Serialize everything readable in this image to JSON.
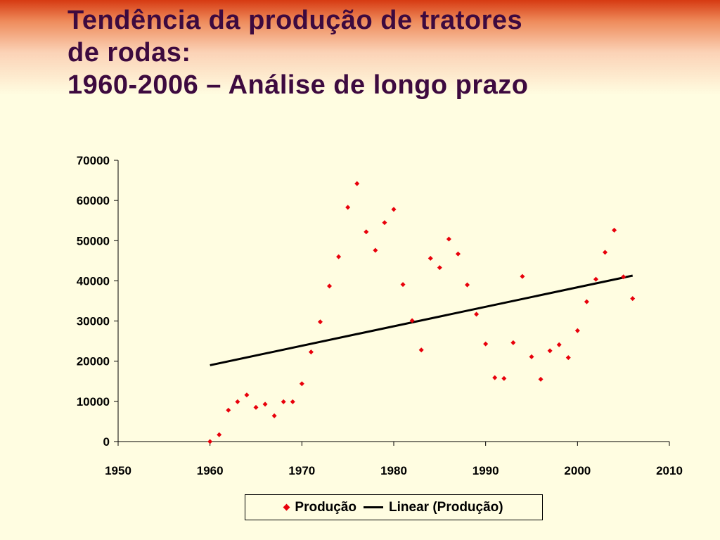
{
  "slide": {
    "title_lines": [
      "Tendência da produção de tratores",
      "de rodas:",
      "1960-2006 – Análise de longo prazo"
    ]
  },
  "colors": {
    "background": "#fffde1",
    "title": "#3d0a3f",
    "marker": "#e8000b",
    "trendline": "#000000"
  },
  "chart_data": {
    "type": "scatter",
    "title": "",
    "xlabel": "",
    "ylabel": "",
    "xlim": [
      1950,
      2010
    ],
    "ylim": [
      0,
      70000
    ],
    "x_ticks": [
      1950,
      1960,
      1970,
      1980,
      1990,
      2000,
      2010
    ],
    "y_ticks": [
      0,
      10000,
      20000,
      30000,
      40000,
      50000,
      60000,
      70000
    ],
    "grid": false,
    "legend_position": "bottom",
    "series": [
      {
        "name": "Produção",
        "marker": "diamond",
        "x": [
          1960,
          1961,
          1962,
          1963,
          1964,
          1965,
          1966,
          1967,
          1968,
          1969,
          1970,
          1971,
          1972,
          1973,
          1974,
          1975,
          1976,
          1977,
          1978,
          1979,
          1980,
          1981,
          1982,
          1983,
          1984,
          1985,
          1986,
          1987,
          1988,
          1989,
          1990,
          1991,
          1992,
          1993,
          1994,
          1995,
          1996,
          1997,
          1998,
          1999,
          2000,
          2001,
          2002,
          2003,
          2004,
          2005,
          2006
        ],
        "y": [
          0,
          1700,
          7800,
          9900,
          11600,
          8500,
          9300,
          6400,
          9900,
          9900,
          14400,
          22300,
          29800,
          38700,
          46000,
          58300,
          64200,
          52200,
          47600,
          54500,
          57800,
          39100,
          30100,
          22800,
          45600,
          43300,
          50400,
          46700,
          39000,
          31700,
          24300,
          15900,
          15700,
          24600,
          41100,
          21100,
          15500,
          22600,
          24100,
          20900,
          27600,
          34800,
          40400,
          47100,
          52600,
          41000,
          35600
        ]
      },
      {
        "name": "Linear (Produção)",
        "type": "line",
        "x": [
          1960,
          2006
        ],
        "y": [
          19000,
          41300
        ]
      }
    ]
  },
  "legend": {
    "items": [
      {
        "label": "Produção",
        "icon": "red-diamond-marker"
      },
      {
        "label": "Linear (Produção)",
        "icon": "black-line"
      }
    ]
  }
}
